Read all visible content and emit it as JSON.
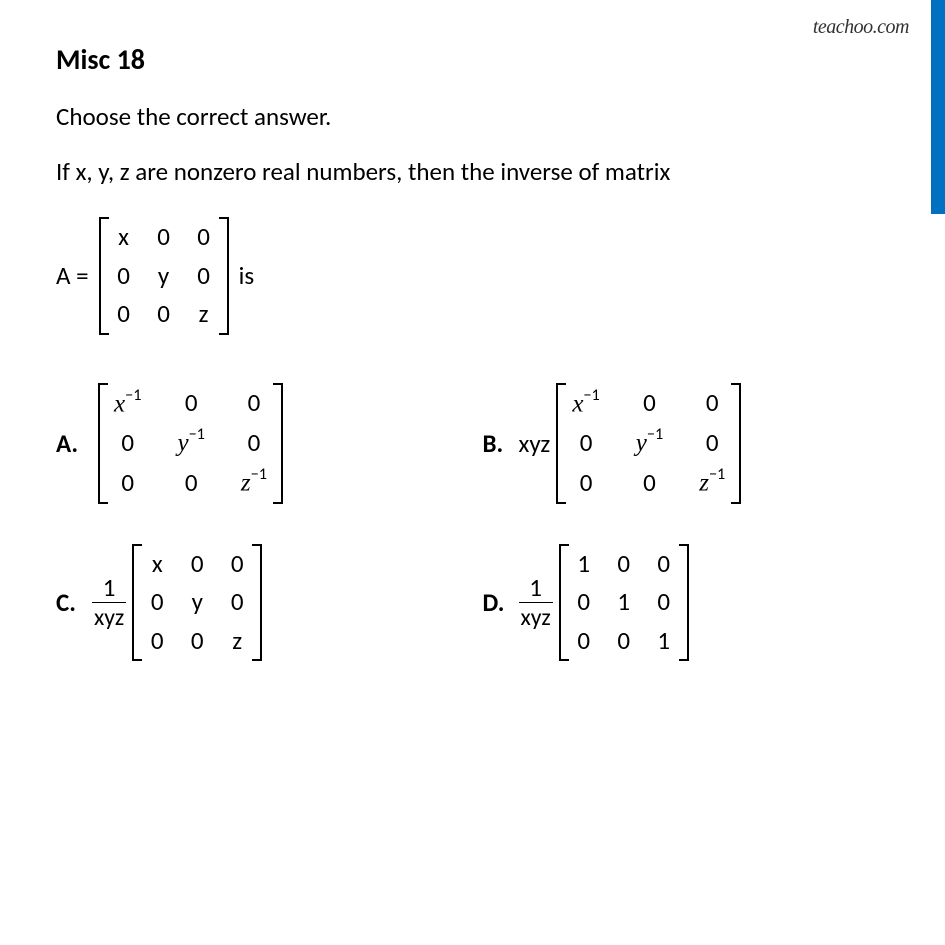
{
  "watermark": "teachoo.com",
  "stripe_color": "#0070c0",
  "title": "Misc 18",
  "prompt1": "Choose the correct answer.",
  "prompt2": "If x, y, z are nonzero real numbers, then the inverse of matrix",
  "matrix_prefix": "A =",
  "matrix_suffix": "is",
  "matrixA": {
    "rows": [
      [
        "x",
        "0",
        "0"
      ],
      [
        "0",
        "y",
        "0"
      ],
      [
        "0",
        "0",
        "z"
      ]
    ]
  },
  "options": {
    "A": {
      "label": "A.",
      "scalar_html": "",
      "rows": [
        [
          "<span class='ital'>x</span><span class='sup'>−1</span>",
          "0",
          "0"
        ],
        [
          "0",
          "<span class='ital'>y</span><span class='sup'>−1</span>",
          "0"
        ],
        [
          "0",
          "0",
          "<span class='ital'>z</span><span class='sup'>−1</span>"
        ]
      ]
    },
    "B": {
      "label": "B.",
      "scalar_html": "xyz",
      "rows": [
        [
          "<span class='ital'>x</span><span class='sup'>−1</span>",
          "0",
          "0"
        ],
        [
          "0",
          "<span class='ital'>y</span><span class='sup'>−1</span>",
          "0"
        ],
        [
          "0",
          "0",
          "<span class='ital'>z</span><span class='sup'>−1</span>"
        ]
      ]
    },
    "C": {
      "label": "C.",
      "scalar_html": "<span class='frac'><span class='num'>1</span><span class='den'>xyz</span></span>",
      "rows": [
        [
          "x",
          "0",
          "0"
        ],
        [
          "0",
          "y",
          "0"
        ],
        [
          "0",
          "0",
          "z"
        ]
      ]
    },
    "D": {
      "label": "D.",
      "scalar_html": "<span class='frac'><span class='num'>1</span><span class='den'>xyz</span></span>",
      "rows": [
        [
          "1",
          "0",
          "0"
        ],
        [
          "0",
          "1",
          "0"
        ],
        [
          "0",
          "0",
          "1"
        ]
      ]
    }
  },
  "fonts": {
    "body_size_pt": 18,
    "title_size_pt": 21,
    "watermark_size_pt": 15
  },
  "colors": {
    "text": "#000000",
    "bg": "#ffffff",
    "stripe": "#0070c0"
  }
}
